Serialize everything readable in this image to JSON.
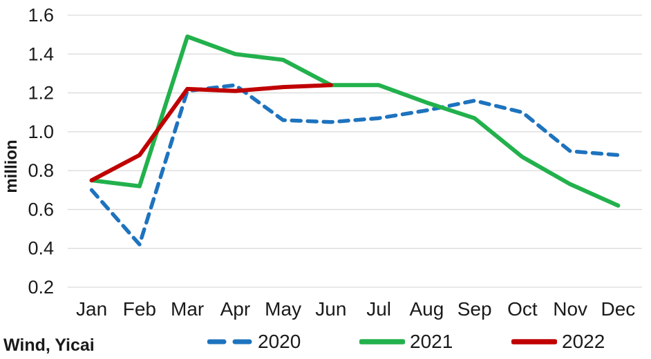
{
  "chart_data": {
    "type": "line",
    "title": "",
    "xlabel": "",
    "ylabel": "million",
    "categories": [
      "Jan",
      "Feb",
      "Mar",
      "Apr",
      "May",
      "Jun",
      "Jul",
      "Aug",
      "Sep",
      "Oct",
      "Nov",
      "Dec"
    ],
    "y_ticks": [
      0.2,
      0.4,
      0.6,
      0.8,
      1.0,
      1.2,
      1.4,
      1.6
    ],
    "ylim": [
      0.2,
      1.6
    ],
    "grid": "horizontal",
    "legend_position": "bottom",
    "series": [
      {
        "name": "2020",
        "color": "#1E73BE",
        "style": "dashed",
        "values": [
          0.7,
          0.42,
          1.21,
          1.24,
          1.06,
          1.05,
          1.07,
          1.11,
          1.16,
          1.1,
          0.9,
          0.88
        ]
      },
      {
        "name": "2021",
        "color": "#22B14C",
        "style": "solid",
        "values": [
          0.75,
          0.72,
          1.49,
          1.4,
          1.37,
          1.24,
          1.24,
          1.15,
          1.07,
          0.87,
          0.73,
          0.62
        ]
      },
      {
        "name": "2022",
        "color": "#C00000",
        "style": "solid",
        "values": [
          0.75,
          0.88,
          1.22,
          1.21,
          1.23,
          1.24
        ]
      }
    ]
  },
  "footer": {
    "source_label": "Wind, Yicai"
  },
  "colors": {
    "gridline": "#D9D9D9",
    "text": "#1a1a1a",
    "background": "#ffffff"
  }
}
